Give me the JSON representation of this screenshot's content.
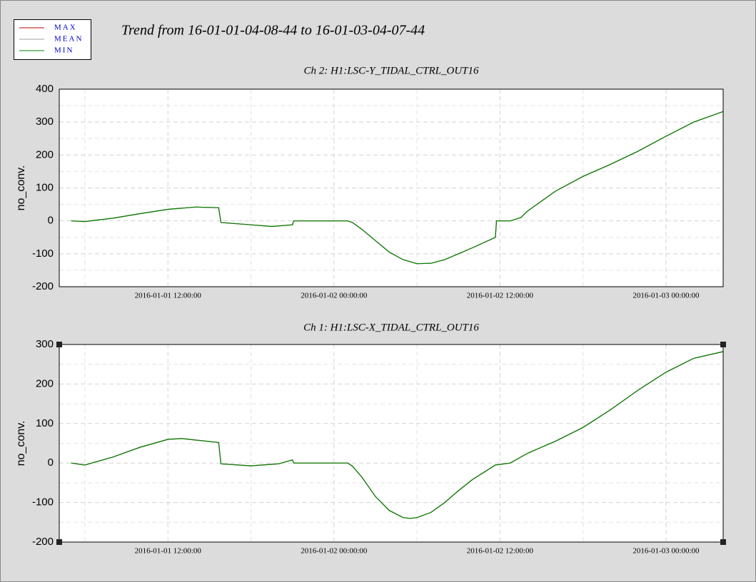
{
  "title": "Trend from 16-01-01-04-08-44 to 16-01-03-04-07-44",
  "chart_data": [
    {
      "type": "line",
      "title": "Ch 2: H1:LSC-Y_TIDAL_CTRL_OUT16",
      "y_label": "no_conv.",
      "x": [
        "2016-01-01 05:00:00",
        "2016-01-01 06:00:00",
        "2016-01-01 08:00:00",
        "2016-01-01 10:00:00",
        "2016-01-01 12:00:00",
        "2016-01-01 14:00:00",
        "2016-01-01 15:40:00",
        "2016-01-01 15:50:00",
        "2016-01-01 18:00:00",
        "2016-01-01 19:30:00",
        "2016-01-01 21:00:00",
        "2016-01-01 21:05:00",
        "2016-01-02 01:00:00",
        "2016-01-02 01:20:00",
        "2016-01-02 02:00:00",
        "2016-01-02 03:00:00",
        "2016-01-02 04:00:00",
        "2016-01-02 05:00:00",
        "2016-01-02 06:00:00",
        "2016-01-02 07:00:00",
        "2016-01-02 08:00:00",
        "2016-01-02 09:00:00",
        "2016-01-02 10:00:00",
        "2016-01-02 11:40:00",
        "2016-01-02 11:45:00",
        "2016-01-02 12:45:00",
        "2016-01-02 13:30:00",
        "2016-01-02 14:00:00",
        "2016-01-02 16:00:00",
        "2016-01-02 18:00:00",
        "2016-01-02 20:00:00",
        "2016-01-02 22:00:00",
        "2016-01-03 00:00:00",
        "2016-01-03 02:00:00",
        "2016-01-03 04:07:00"
      ],
      "series": [
        {
          "name": "MAX",
          "color": "#cc0000",
          "values": [
            0,
            -2,
            8,
            22,
            35,
            42,
            40,
            -5,
            -12,
            -17,
            -12,
            0,
            0,
            -5,
            -25,
            -60,
            -95,
            -118,
            -130,
            -129,
            -118,
            -100,
            -82,
            -50,
            0,
            0,
            10,
            30,
            90,
            135,
            172,
            212,
            257,
            300,
            332
          ]
        },
        {
          "name": "MEAN",
          "color": "#a0a0a0",
          "values": [
            0,
            -2,
            8,
            22,
            35,
            42,
            40,
            -5,
            -12,
            -17,
            -12,
            0,
            0,
            -5,
            -25,
            -60,
            -95,
            -118,
            -130,
            -129,
            -118,
            -100,
            -82,
            -50,
            0,
            0,
            10,
            30,
            90,
            135,
            172,
            212,
            257,
            300,
            332
          ]
        },
        {
          "name": "MIN",
          "color": "#008000",
          "values": [
            0,
            -2,
            8,
            22,
            35,
            42,
            40,
            -5,
            -12,
            -17,
            -12,
            0,
            0,
            -5,
            -25,
            -60,
            -95,
            -118,
            -130,
            -129,
            -118,
            -100,
            -82,
            -50,
            0,
            0,
            10,
            30,
            90,
            135,
            172,
            212,
            257,
            300,
            332
          ]
        }
      ],
      "xlim": [
        "2016-01-01 04:08:44",
        "2016-01-03 04:07:44"
      ],
      "xticks": [
        "2016-01-01 12:00:00",
        "2016-01-02 00:00:00",
        "2016-01-02 12:00:00",
        "2016-01-03 00:00:00"
      ],
      "ylim": [
        -200,
        400
      ],
      "yticks": [
        -200,
        -100,
        0,
        100,
        200,
        300,
        400
      ],
      "grid": true
    },
    {
      "type": "line",
      "title": "Ch 1: H1:LSC-X_TIDAL_CTRL_OUT16",
      "y_label": "no_conv.",
      "x": [
        "2016-01-01 05:00:00",
        "2016-01-01 06:00:00",
        "2016-01-01 08:00:00",
        "2016-01-01 10:00:00",
        "2016-01-01 12:00:00",
        "2016-01-01 13:00:00",
        "2016-01-01 15:40:00",
        "2016-01-01 15:50:00",
        "2016-01-01 18:00:00",
        "2016-01-01 20:00:00",
        "2016-01-01 21:00:00",
        "2016-01-01 21:05:00",
        "2016-01-02 01:00:00",
        "2016-01-02 01:20:00",
        "2016-01-02 02:00:00",
        "2016-01-02 03:00:00",
        "2016-01-02 04:00:00",
        "2016-01-02 05:00:00",
        "2016-01-02 05:30:00",
        "2016-01-02 06:00:00",
        "2016-01-02 07:00:00",
        "2016-01-02 08:00:00",
        "2016-01-02 09:00:00",
        "2016-01-02 10:00:00",
        "2016-01-02 11:40:00",
        "2016-01-02 12:45:00",
        "2016-01-02 14:00:00",
        "2016-01-02 16:00:00",
        "2016-01-02 18:00:00",
        "2016-01-02 20:00:00",
        "2016-01-02 22:00:00",
        "2016-01-03 00:00:00",
        "2016-01-03 02:00:00",
        "2016-01-03 04:07:00"
      ],
      "series": [
        {
          "color": "#cc0000",
          "values": [
            0,
            -5,
            15,
            40,
            60,
            62,
            52,
            -2,
            -7,
            -2,
            8,
            0,
            0,
            -8,
            -35,
            -85,
            -120,
            -138,
            -140,
            -138,
            -125,
            -100,
            -70,
            -42,
            -5,
            0,
            25,
            55,
            90,
            135,
            185,
            230,
            265,
            282
          ]
        },
        {
          "color": "#a0a0a0",
          "values": [
            0,
            -5,
            15,
            40,
            60,
            62,
            52,
            -2,
            -7,
            -2,
            8,
            0,
            0,
            -8,
            -35,
            -85,
            -120,
            -138,
            -140,
            -138,
            -125,
            -100,
            -70,
            -42,
            -5,
            0,
            25,
            55,
            90,
            135,
            185,
            230,
            265,
            282
          ]
        },
        {
          "color": "#008000",
          "values": [
            0,
            -5,
            15,
            40,
            60,
            62,
            52,
            -2,
            -7,
            -2,
            8,
            0,
            0,
            -8,
            -35,
            -85,
            -120,
            -138,
            -140,
            -138,
            -125,
            -100,
            -70,
            -42,
            -5,
            0,
            25,
            55,
            90,
            135,
            185,
            230,
            265,
            282
          ]
        }
      ],
      "xlim": [
        "2016-01-01 04:08:44",
        "2016-01-03 04:07:44"
      ],
      "xticks": [
        "2016-01-01 12:00:00",
        "2016-01-02 00:00:00",
        "2016-01-02 12:00:00",
        "2016-01-03 00:00:00"
      ],
      "ylim": [
        -200,
        300
      ],
      "yticks": [
        -200,
        -100,
        0,
        100,
        200,
        300
      ],
      "grid": true
    }
  ]
}
